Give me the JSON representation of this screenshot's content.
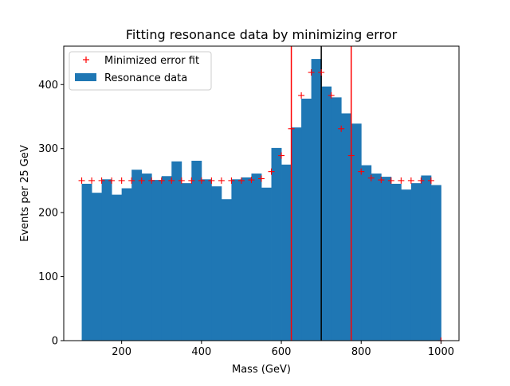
{
  "chart_data": {
    "type": "bar",
    "title": "Fitting resonance data by minimizing error",
    "xlabel": "Mass (GeV)",
    "ylabel": "Events per 25 GeV",
    "xlim": [
      55,
      1045
    ],
    "ylim": [
      0,
      460
    ],
    "xticks": [
      200,
      400,
      600,
      800,
      1000
    ],
    "yticks": [
      0,
      100,
      200,
      300,
      400
    ],
    "grid": false,
    "legend_position": "top-left",
    "bin_width": 25,
    "bins": [
      {
        "x0": 100,
        "x1": 125,
        "count": 245
      },
      {
        "x0": 125,
        "x1": 150,
        "count": 231
      },
      {
        "x0": 150,
        "x1": 175,
        "count": 252
      },
      {
        "x0": 175,
        "x1": 200,
        "count": 228
      },
      {
        "x0": 200,
        "x1": 225,
        "count": 238
      },
      {
        "x0": 225,
        "x1": 250,
        "count": 267
      },
      {
        "x0": 250,
        "x1": 275,
        "count": 261
      },
      {
        "x0": 275,
        "x1": 300,
        "count": 251
      },
      {
        "x0": 300,
        "x1": 325,
        "count": 257
      },
      {
        "x0": 325,
        "x1": 350,
        "count": 280
      },
      {
        "x0": 350,
        "x1": 375,
        "count": 246
      },
      {
        "x0": 375,
        "x1": 400,
        "count": 281
      },
      {
        "x0": 400,
        "x1": 425,
        "count": 252
      },
      {
        "x0": 425,
        "x1": 450,
        "count": 241
      },
      {
        "x0": 450,
        "x1": 475,
        "count": 221
      },
      {
        "x0": 475,
        "x1": 500,
        "count": 252
      },
      {
        "x0": 500,
        "x1": 525,
        "count": 255
      },
      {
        "x0": 525,
        "x1": 550,
        "count": 261
      },
      {
        "x0": 550,
        "x1": 575,
        "count": 239
      },
      {
        "x0": 575,
        "x1": 600,
        "count": 301
      },
      {
        "x0": 600,
        "x1": 625,
        "count": 275
      },
      {
        "x0": 625,
        "x1": 650,
        "count": 333
      },
      {
        "x0": 650,
        "x1": 675,
        "count": 378
      },
      {
        "x0": 675,
        "x1": 700,
        "count": 440
      },
      {
        "x0": 700,
        "x1": 725,
        "count": 397
      },
      {
        "x0": 725,
        "x1": 750,
        "count": 380
      },
      {
        "x0": 750,
        "x1": 775,
        "count": 355
      },
      {
        "x0": 775,
        "x1": 800,
        "count": 339
      },
      {
        "x0": 800,
        "x1": 825,
        "count": 274
      },
      {
        "x0": 825,
        "x1": 850,
        "count": 261
      },
      {
        "x0": 850,
        "x1": 875,
        "count": 256
      },
      {
        "x0": 875,
        "x1": 900,
        "count": 245
      },
      {
        "x0": 900,
        "x1": 925,
        "count": 236
      },
      {
        "x0": 925,
        "x1": 950,
        "count": 246
      },
      {
        "x0": 950,
        "x1": 975,
        "count": 258
      },
      {
        "x0": 975,
        "x1": 1000,
        "count": 243
      }
    ],
    "fit_points": [
      {
        "x": 100,
        "y": 250
      },
      {
        "x": 125,
        "y": 250
      },
      {
        "x": 150,
        "y": 250
      },
      {
        "x": 175,
        "y": 250
      },
      {
        "x": 200,
        "y": 250
      },
      {
        "x": 225,
        "y": 250
      },
      {
        "x": 250,
        "y": 250
      },
      {
        "x": 275,
        "y": 250
      },
      {
        "x": 300,
        "y": 250
      },
      {
        "x": 325,
        "y": 250
      },
      {
        "x": 350,
        "y": 250
      },
      {
        "x": 375,
        "y": 250
      },
      {
        "x": 400,
        "y": 250
      },
      {
        "x": 425,
        "y": 250
      },
      {
        "x": 450,
        "y": 250
      },
      {
        "x": 475,
        "y": 250
      },
      {
        "x": 500,
        "y": 250
      },
      {
        "x": 525,
        "y": 251
      },
      {
        "x": 550,
        "y": 253
      },
      {
        "x": 575,
        "y": 264
      },
      {
        "x": 600,
        "y": 289
      },
      {
        "x": 625,
        "y": 331
      },
      {
        "x": 650,
        "y": 383
      },
      {
        "x": 675,
        "y": 419
      },
      {
        "x": 700,
        "y": 419
      },
      {
        "x": 725,
        "y": 383
      },
      {
        "x": 750,
        "y": 331
      },
      {
        "x": 775,
        "y": 289
      },
      {
        "x": 800,
        "y": 264
      },
      {
        "x": 825,
        "y": 254
      },
      {
        "x": 850,
        "y": 251
      },
      {
        "x": 875,
        "y": 250
      },
      {
        "x": 900,
        "y": 250
      },
      {
        "x": 925,
        "y": 250
      },
      {
        "x": 950,
        "y": 250
      },
      {
        "x": 975,
        "y": 250
      },
      {
        "x": 1000,
        "y": 0
      }
    ],
    "vertical_lines": [
      {
        "x": 625,
        "color": "#ff0000"
      },
      {
        "x": 700,
        "color": "#000000"
      },
      {
        "x": 775,
        "color": "#ff0000"
      }
    ],
    "series": [
      {
        "name": "Minimized error fit",
        "marker": "+",
        "color": "#ff0000"
      },
      {
        "name": "Resonance data",
        "marker": "bar",
        "color": "#1f77b4"
      }
    ]
  }
}
